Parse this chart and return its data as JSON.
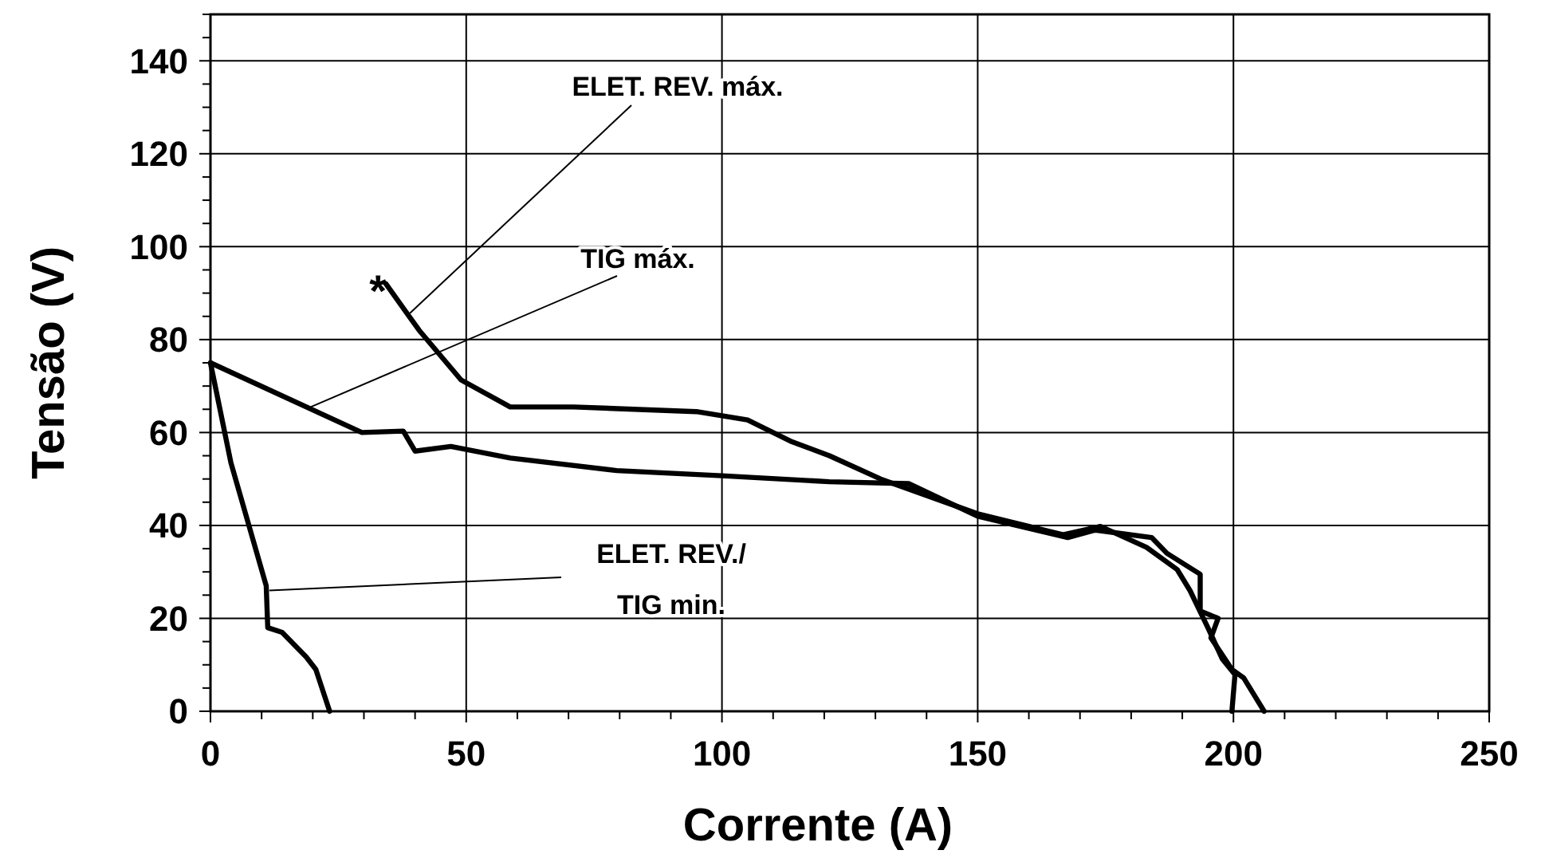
{
  "chart_data": {
    "type": "line",
    "xlabel": "Corrente (A)",
    "ylabel": "Tensão (V)",
    "xlim": [
      0,
      250
    ],
    "ylim": [
      0,
      150
    ],
    "xticks": [
      0,
      {
        "value": 10,
        "label": null
      },
      {
        "value": 20,
        "label": null
      },
      {
        "value": 30,
        "label": null
      },
      {
        "value": 40,
        "label": null
      },
      50,
      {
        "value": 60,
        "label": null
      },
      {
        "value": 70,
        "label": null
      },
      {
        "value": 80,
        "label": null
      },
      {
        "value": 90,
        "label": null
      },
      100,
      {
        "value": 110,
        "label": null
      },
      {
        "value": 120,
        "label": null
      },
      {
        "value": 130,
        "label": null
      },
      {
        "value": 140,
        "label": null
      },
      150,
      {
        "value": 160,
        "label": null
      },
      {
        "value": 170,
        "label": null
      },
      {
        "value": 180,
        "label": null
      },
      {
        "value": 190,
        "label": null
      },
      200,
      {
        "value": 210,
        "label": null
      },
      {
        "value": 220,
        "label": null
      },
      {
        "value": 230,
        "label": null
      },
      {
        "value": 240,
        "label": null
      },
      250
    ],
    "yticks": [
      0,
      {
        "value": 5,
        "label": null
      },
      {
        "value": 10,
        "label": null
      },
      {
        "value": 15,
        "label": null
      },
      20,
      {
        "value": 25,
        "label": null
      },
      {
        "value": 30,
        "label": null
      },
      {
        "value": 35,
        "label": null
      },
      40,
      {
        "value": 45,
        "label": null
      },
      {
        "value": 50,
        "label": null
      },
      {
        "value": 55,
        "label": null
      },
      60,
      {
        "value": 65,
        "label": null
      },
      {
        "value": 70,
        "label": null
      },
      {
        "value": 75,
        "label": null
      },
      80,
      {
        "value": 85,
        "label": null
      },
      {
        "value": 90,
        "label": null
      },
      {
        "value": 95,
        "label": null
      },
      100,
      {
        "value": 105,
        "label": null
      },
      {
        "value": 110,
        "label": null
      },
      {
        "value": 115,
        "label": null
      },
      120,
      {
        "value": 125,
        "label": null
      },
      {
        "value": 130,
        "label": null
      },
      {
        "value": 135,
        "label": null
      },
      140,
      {
        "value": 145,
        "label": null
      },
      {
        "value": 150,
        "label": null
      }
    ],
    "grid": true,
    "marker": "none",
    "line_style": "solid",
    "series": [
      {
        "color": "#000000",
        "x": [
          0,
          29.6,
          37.7,
          40,
          47,
          58.6,
          79.4,
          100,
          121,
          136.5,
          150,
          167.6,
          173,
          184,
          187,
          193.5,
          193.5,
          197,
          195.6,
          199.7,
          202,
          206
        ],
        "values": [
          75,
          60,
          60.3,
          56,
          57,
          54.5,
          51.8,
          50.7,
          49.4,
          49,
          42,
          37.4,
          39,
          37.4,
          34,
          29.5,
          21.6,
          20,
          15.8,
          9,
          7.2,
          0
        ]
      },
      {
        "color": "#000000",
        "x": [
          34.3,
          40.8,
          49,
          58.6,
          71,
          95,
          105,
          113.7,
          121,
          131,
          150,
          166.7,
          174,
          183,
          189,
          191.5,
          195,
          197.8,
          200.3,
          199.7
        ],
        "values": [
          92,
          82,
          71.3,
          65.5,
          65.5,
          64.5,
          62.7,
          58,
          55,
          50,
          42.5,
          38,
          39.8,
          35.3,
          30.5,
          26,
          18,
          11.3,
          7.9,
          0
        ]
      },
      {
        "color": "#000000",
        "x": [
          0,
          4,
          10.9,
          11.2,
          14,
          18.7,
          20.6,
          23.3
        ],
        "values": [
          75,
          53.5,
          27,
          18,
          17,
          11.7,
          9,
          0
        ]
      }
    ],
    "annotations": [
      {
        "text": "ELET. REV. máx.",
        "x": 39,
        "y": 85.7
      },
      {
        "text": "TIG máx.",
        "x": 19.6,
        "y": 65.5
      },
      {
        "text": "ELET. REV./\nTIG min.",
        "x": 11.5,
        "y": 26
      },
      {
        "text": "*",
        "x": 34.3,
        "y": 92
      }
    ]
  }
}
